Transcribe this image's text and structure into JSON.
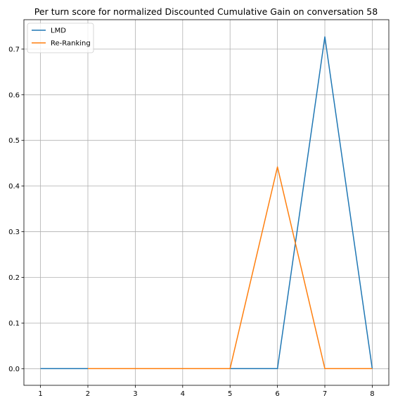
{
  "chart_data": {
    "type": "line",
    "title": "Per turn score for normalized Discounted Cumulative Gain on conversation 58",
    "xlabel": "",
    "ylabel": "",
    "x": [
      1,
      2,
      3,
      4,
      5,
      6,
      7,
      8
    ],
    "x_ticks": [
      1,
      2,
      3,
      4,
      5,
      6,
      7,
      8
    ],
    "y_ticks": [
      0.0,
      0.1,
      0.2,
      0.3,
      0.4,
      0.5,
      0.6,
      0.7
    ],
    "xlim": [
      0.65,
      8.35
    ],
    "ylim": [
      -0.0365,
      0.7645
    ],
    "grid": true,
    "legend_position": "top-left",
    "series": [
      {
        "name": "LMD",
        "color": "#1f77b4",
        "x": [
          1,
          2,
          3,
          4,
          5,
          6,
          7,
          8
        ],
        "values": [
          0.0,
          0.0,
          0.0,
          0.0,
          0.0,
          0.0,
          0.727,
          0.0
        ]
      },
      {
        "name": "Re-Ranking",
        "color": "#ff7f0e",
        "x": [
          2,
          3,
          4,
          5,
          6,
          7,
          8
        ],
        "values": [
          0.0,
          0.0,
          0.0,
          0.0,
          0.442,
          0.0,
          0.0
        ]
      }
    ]
  }
}
